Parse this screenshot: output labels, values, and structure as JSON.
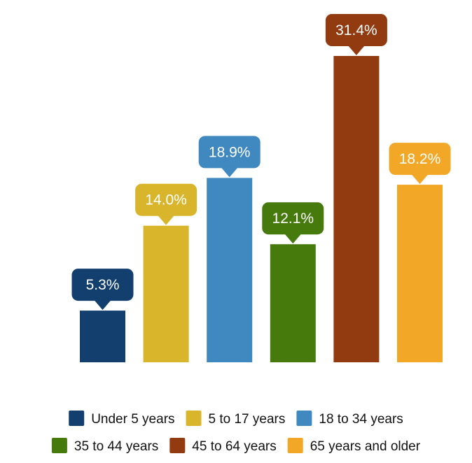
{
  "chart_data": {
    "type": "bar",
    "categories": [
      "Under 5 years",
      "5 to 17 years",
      "18 to 34 years",
      "35 to 44 years",
      "45 to 64 years",
      "65 years and older"
    ],
    "values": [
      5.3,
      14.0,
      18.9,
      12.1,
      31.4,
      18.2
    ],
    "value_labels": [
      "5.3%",
      "14.0%",
      "18.9%",
      "12.1%",
      "31.4%",
      "18.2%"
    ],
    "colors": [
      "#123f6e",
      "#d9b52c",
      "#3f88c0",
      "#467a0d",
      "#923a10",
      "#f2a726"
    ],
    "title": "",
    "xlabel": "",
    "ylabel": "",
    "ylim": [
      0,
      31.4
    ],
    "grid": false,
    "legend_position": "bottom",
    "legend": [
      {
        "label": "Under 5 years",
        "color": "#123f6e"
      },
      {
        "label": "5 to 17 years",
        "color": "#d9b52c"
      },
      {
        "label": "18 to 34 years",
        "color": "#3f88c0"
      },
      {
        "label": "35 to 44 years",
        "color": "#467a0d"
      },
      {
        "label": "45 to 64 years",
        "color": "#923a10"
      },
      {
        "label": "65 years and older",
        "color": "#f2a726"
      }
    ]
  }
}
